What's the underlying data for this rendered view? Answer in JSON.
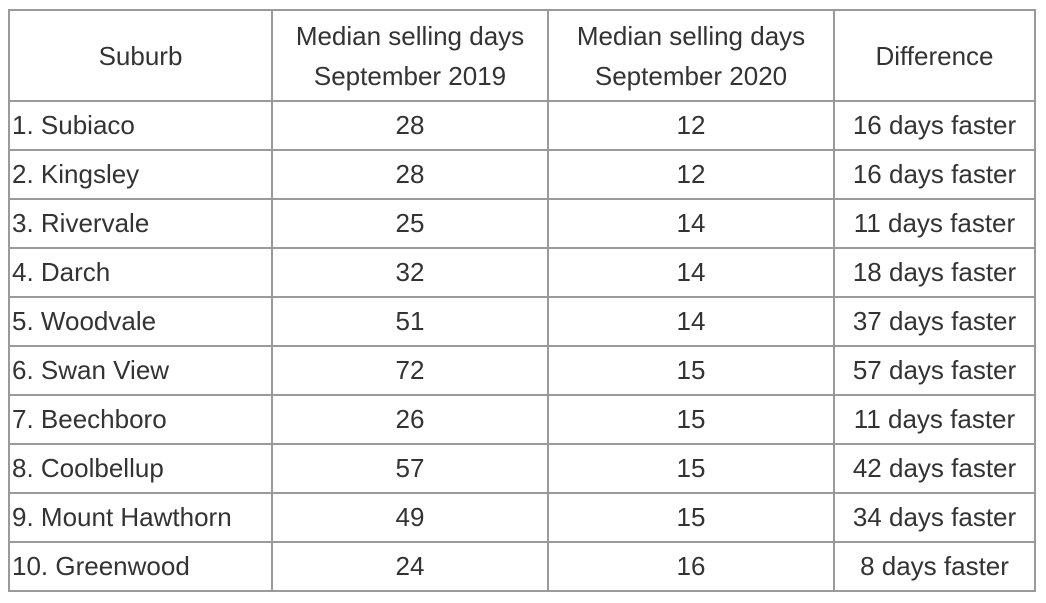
{
  "table": {
    "headers": {
      "suburb": "Suburb",
      "days_2019_line1": "Median selling days",
      "days_2019_line2": "September 2019",
      "days_2020_line1": "Median selling days",
      "days_2020_line2": "September 2020",
      "difference": "Difference"
    },
    "rows": [
      {
        "suburb": "1. Subiaco",
        "days_2019": "28",
        "days_2020": "12",
        "difference": "16 days faster"
      },
      {
        "suburb": "2. Kingsley",
        "days_2019": "28",
        "days_2020": "12",
        "difference": "16 days faster"
      },
      {
        "suburb": "3. Rivervale",
        "days_2019": "25",
        "days_2020": "14",
        "difference": "11 days faster"
      },
      {
        "suburb": "4. Darch",
        "days_2019": "32",
        "days_2020": "14",
        "difference": "18 days faster"
      },
      {
        "suburb": "5. Woodvale",
        "days_2019": "51",
        "days_2020": "14",
        "difference": "37 days faster"
      },
      {
        "suburb": "6. Swan View",
        "days_2019": "72",
        "days_2020": "15",
        "difference": "57 days faster"
      },
      {
        "suburb": "7. Beechboro",
        "days_2019": "26",
        "days_2020": "15",
        "difference": "11 days faster"
      },
      {
        "suburb": "8. Coolbellup",
        "days_2019": "57",
        "days_2020": "15",
        "difference": "42 days faster"
      },
      {
        "suburb": "9. Mount Hawthorn",
        "days_2019": "49",
        "days_2020": "15",
        "difference": "34 days faster"
      },
      {
        "suburb": "10. Greenwood",
        "days_2019": "24",
        "days_2020": "16",
        "difference": "8 days faster"
      }
    ]
  }
}
